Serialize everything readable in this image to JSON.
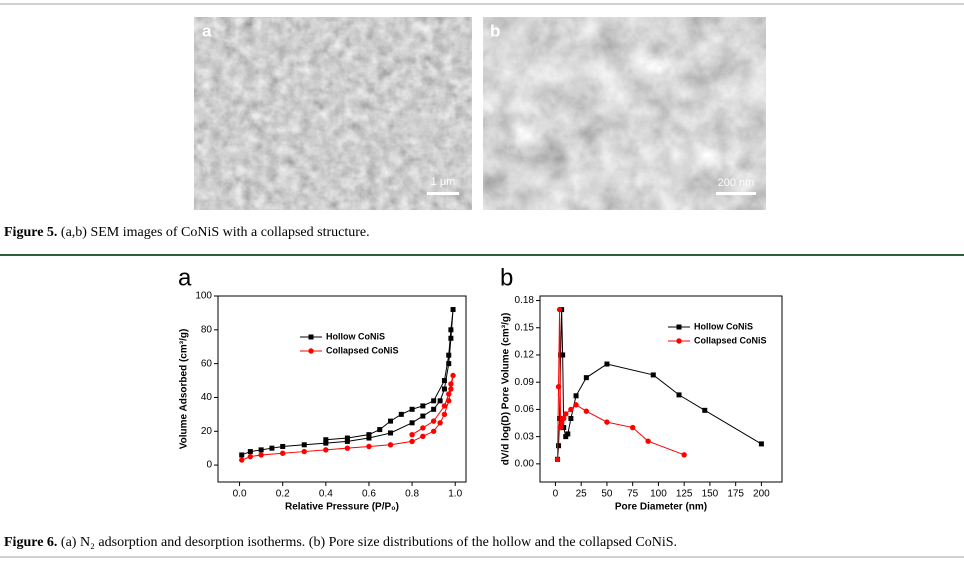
{
  "figure5": {
    "panels": [
      {
        "label": "a",
        "scale_bar": "1 μm"
      },
      {
        "label": "b",
        "scale_bar": "200 nm"
      }
    ],
    "caption_label": "Figure 5.",
    "caption_text": "(a,b) SEM images of CoNiS with a collapsed structure."
  },
  "figure6": {
    "caption_label": "Figure 6.",
    "caption_text": "(a) N₂ adsorption and desorption isotherms. (b) Pore size distributions of the hollow and the collapsed CoNiS."
  },
  "chart_data": [
    {
      "type": "line",
      "panel_label": "a",
      "x_label": "Relative Pressure (P/P₀)",
      "y_label": "Volume Adsorbed (cm³/g)",
      "xlim": [
        -0.1,
        1.05
      ],
      "ylim": [
        -10,
        100
      ],
      "xticks": [
        {
          "value": 0,
          "label": "0.0"
        },
        0.2,
        0.4,
        0.6,
        0.8,
        {
          "value": 1,
          "label": "1.0"
        }
      ],
      "yticks": [
        0,
        20,
        40,
        60,
        80,
        100
      ],
      "series": [
        {
          "name": "Hollow CoNiS",
          "color": "#000000",
          "marker": "square",
          "x": [
            0.01,
            0.05,
            0.1,
            0.15,
            0.2,
            0.3,
            0.4,
            0.5,
            0.6,
            0.7,
            0.8,
            0.85,
            0.9,
            0.93,
            0.95,
            0.97,
            0.98,
            0.99,
            0.98,
            0.97,
            0.95,
            0.9,
            0.85,
            0.8,
            0.75,
            0.7,
            0.65,
            0.6,
            0.5,
            0.4
          ],
          "values": [
            6,
            8,
            9,
            10,
            11,
            12,
            13,
            14,
            16,
            19,
            25,
            29,
            33,
            38,
            45,
            60,
            75,
            92,
            80,
            65,
            50,
            38,
            35,
            33,
            30,
            26,
            21,
            18,
            16,
            15
          ]
        },
        {
          "name": "Collapsed CoNiS",
          "color": "#ff0000",
          "marker": "circle",
          "x": [
            0.01,
            0.05,
            0.1,
            0.2,
            0.3,
            0.4,
            0.5,
            0.6,
            0.7,
            0.8,
            0.85,
            0.9,
            0.93,
            0.95,
            0.97,
            0.98,
            0.99,
            0.98,
            0.97,
            0.95,
            0.9,
            0.85,
            0.8
          ],
          "values": [
            3,
            5,
            6,
            7,
            8,
            9,
            10,
            11,
            12,
            14,
            17,
            20,
            25,
            30,
            38,
            45,
            53,
            48,
            42,
            35,
            26,
            22,
            18
          ]
        }
      ]
    },
    {
      "type": "line",
      "panel_label": "b",
      "x_label": "Pore Diameter (nm)",
      "y_label": "dV/d log(D) Pore Volume (cm³/g)",
      "xlim": [
        -15,
        220
      ],
      "ylim": [
        -0.02,
        0.185
      ],
      "xticks": [
        0,
        25,
        50,
        75,
        100,
        125,
        150,
        175,
        200
      ],
      "yticks": [
        {
          "value": 0,
          "label": "0.00"
        },
        0.03,
        0.06,
        0.09,
        0.12,
        0.15,
        0.18
      ],
      "series": [
        {
          "name": "Hollow CoNiS",
          "color": "#000000",
          "marker": "square",
          "x": [
            2,
            3,
            4,
            5,
            6,
            7,
            8,
            10,
            12,
            15,
            20,
            30,
            50,
            95,
            120,
            145,
            200
          ],
          "values": [
            0.005,
            0.02,
            0.05,
            0.12,
            0.17,
            0.12,
            0.04,
            0.03,
            0.033,
            0.05,
            0.075,
            0.095,
            0.11,
            0.098,
            0.076,
            0.059,
            0.022
          ]
        },
        {
          "name": "Collapsed CoNiS",
          "color": "#ff0000",
          "marker": "circle",
          "x": [
            2,
            3,
            4,
            5,
            6,
            8,
            10,
            15,
            20,
            30,
            50,
            75,
            90,
            125
          ],
          "values": [
            0.005,
            0.085,
            0.17,
            0.04,
            0.045,
            0.05,
            0.055,
            0.06,
            0.065,
            0.058,
            0.046,
            0.04,
            0.025,
            0.01
          ]
        }
      ]
    }
  ]
}
